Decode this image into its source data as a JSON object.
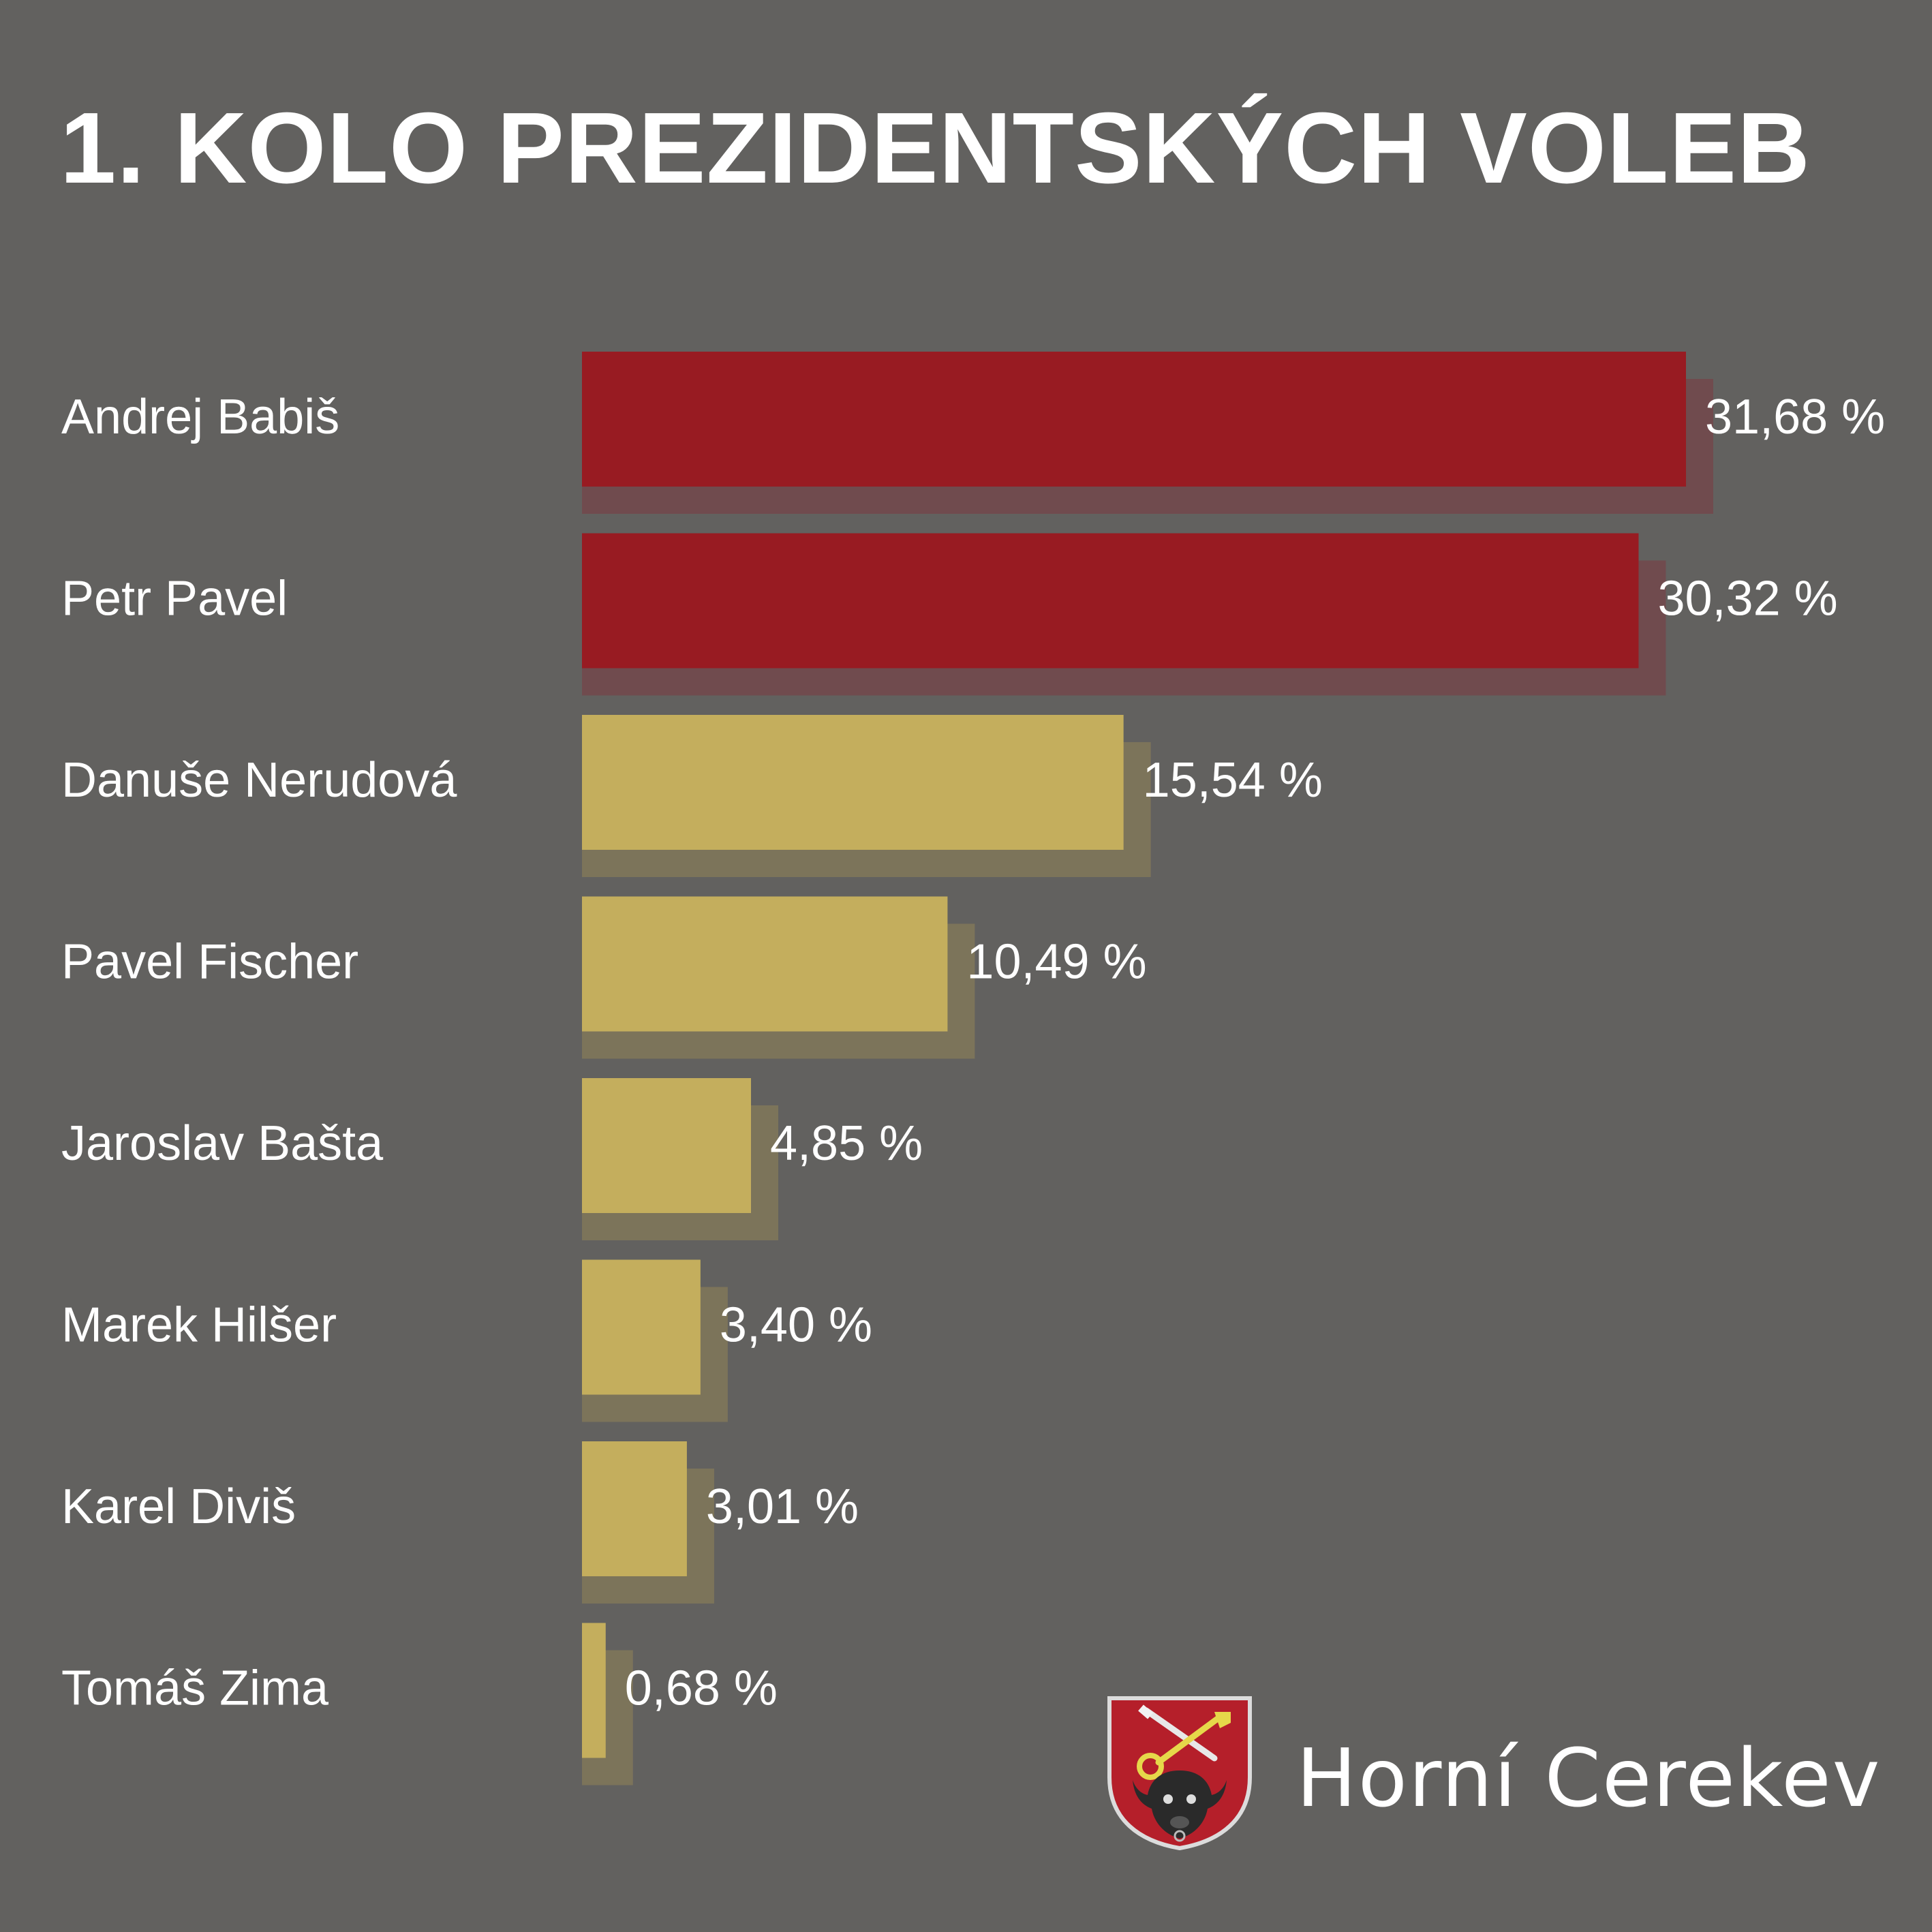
{
  "title": "1. KOLO PREZIDENTSKÝCH VOLEB",
  "colors": {
    "background": "#62615f",
    "top_bar": "#981b22",
    "top_bar_shadow": "#704b4e",
    "other_bar": "#c4ae5d",
    "other_bar_shadow": "#7c745a",
    "text": "#ffffff"
  },
  "chart_data": {
    "type": "bar",
    "orientation": "horizontal",
    "title": "1. KOLO PREZIDENTSKÝCH VOLEB",
    "categories": [
      "Andrej Babiš",
      "Petr Pavel",
      "Danuše Nerudová",
      "Pavel Fischer",
      "Jaroslav Bašta",
      "Marek Hilšer",
      "Karel Diviš",
      "Tomáš Zima"
    ],
    "values": [
      31.68,
      30.32,
      15.54,
      10.49,
      4.85,
      3.4,
      3.01,
      0.68
    ],
    "value_labels": [
      "31,68 %",
      "30,32 %",
      "15,54 %",
      "10,49 %",
      "4,85 %",
      "3,40 %",
      "3,01 %",
      "0,68 %"
    ],
    "highlighted": [
      true,
      true,
      false,
      false,
      false,
      false,
      false,
      false
    ],
    "xlim": [
      0,
      31.68
    ],
    "grid": false,
    "axes_visible": false
  },
  "logo": {
    "name": "Horní Cerekev",
    "icon": "coat-of-arms-icon"
  }
}
